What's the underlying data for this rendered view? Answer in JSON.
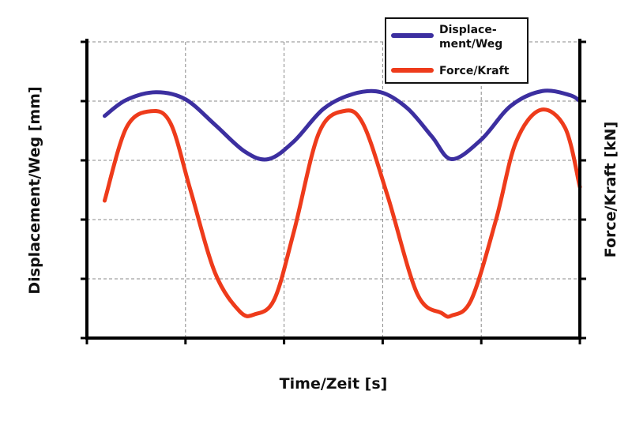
{
  "chart_data": {
    "type": "line",
    "title": "",
    "xlabel": "Time/Zeit [s]",
    "ylabel_left": "Displacement/Weg [mm]",
    "ylabel_right": "Force/Kraft [kN]",
    "xlim": [
      0,
      5
    ],
    "ylim": [
      0,
      5
    ],
    "grid": true,
    "legend_position": "top-right",
    "tick_labels": "none",
    "series": [
      {
        "name": "Displace-\nment/Weg",
        "legend_lines": [
          "Displace-",
          "ment/Weg"
        ],
        "axis": "left",
        "color": "#3c2fa0",
        "x": [
          0.18,
          0.4,
          0.7,
          1.0,
          1.3,
          1.6,
          1.84,
          2.1,
          2.4,
          2.7,
          2.98,
          3.25,
          3.5,
          3.7,
          4.0,
          4.3,
          4.62,
          4.9,
          5.0
        ],
        "y": [
          3.75,
          4.02,
          4.15,
          4.03,
          3.6,
          3.15,
          3.02,
          3.32,
          3.87,
          4.12,
          4.15,
          3.88,
          3.4,
          3.02,
          3.35,
          3.92,
          4.17,
          4.1,
          4.0
        ]
      },
      {
        "name": "Force/Kraft",
        "legend_lines": [
          "Force/Kraft"
        ],
        "axis": "right",
        "color": "#ee3b1b",
        "x": [
          0.18,
          0.4,
          0.65,
          0.85,
          1.05,
          1.3,
          1.55,
          1.7,
          1.9,
          2.1,
          2.35,
          2.6,
          2.8,
          3.05,
          3.35,
          3.6,
          3.7,
          3.9,
          4.15,
          4.35,
          4.6,
          4.85,
          5.0
        ],
        "y": [
          2.32,
          3.55,
          3.83,
          3.62,
          2.5,
          1.1,
          0.45,
          0.4,
          0.65,
          1.8,
          3.45,
          3.83,
          3.62,
          2.4,
          0.75,
          0.42,
          0.38,
          0.65,
          2.0,
          3.3,
          3.85,
          3.55,
          2.55
        ]
      }
    ]
  }
}
